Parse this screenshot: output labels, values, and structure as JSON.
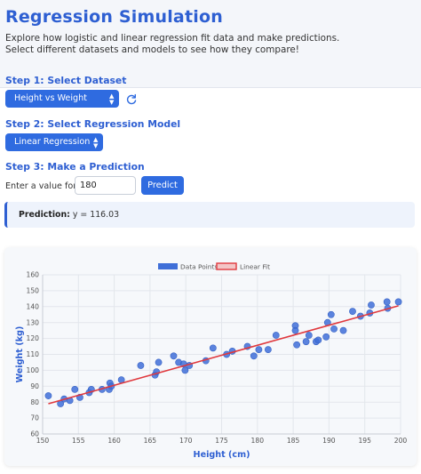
{
  "header": {
    "title": "Regression Simulation",
    "intro_line1": "Explore how logistic and linear regression fit data and make predictions.",
    "intro_line2": "Select different datasets and models to see how they compare!"
  },
  "step1": {
    "title": "Step 1: Select Dataset",
    "selected": "Height vs Weight",
    "refresh_icon": "refresh-icon"
  },
  "step2": {
    "title": "Step 2: Select Regression Model",
    "selected": "Linear Regression"
  },
  "step3": {
    "title": "Step 3: Make a Prediction",
    "input_label": "Enter a value for x:",
    "input_value": "180",
    "button_label": "Predict"
  },
  "result": {
    "label": "Prediction:",
    "text": "y = 116.03"
  },
  "colors": {
    "accent": "#2f6be0",
    "points": "#3f6fd8",
    "fit_line": "#e0393e"
  },
  "chart_data": {
    "type": "scatter",
    "xlabel": "Height (cm)",
    "ylabel": "Weight (kg)",
    "xlim": [
      150,
      200
    ],
    "ylim": [
      60,
      160
    ],
    "xticks": [
      150,
      155,
      160,
      165,
      170,
      175,
      180,
      185,
      190,
      195,
      200
    ],
    "yticks": [
      60,
      70,
      80,
      90,
      100,
      110,
      120,
      130,
      140,
      150,
      160
    ],
    "grid": true,
    "legend": {
      "position": "top",
      "entries": [
        "Data Points",
        "Linear Fit"
      ]
    },
    "series": [
      {
        "name": "Data Points",
        "kind": "scatter",
        "points": [
          [
            150.8,
            84
          ],
          [
            152.5,
            79
          ],
          [
            153,
            82
          ],
          [
            153.8,
            81
          ],
          [
            154.5,
            88
          ],
          [
            155.2,
            83
          ],
          [
            156.5,
            86
          ],
          [
            156.8,
            88
          ],
          [
            158.3,
            88
          ],
          [
            159.3,
            88
          ],
          [
            159.4,
            92
          ],
          [
            159.6,
            90
          ],
          [
            161,
            94
          ],
          [
            163.7,
            103
          ],
          [
            165.7,
            97
          ],
          [
            165.9,
            99
          ],
          [
            166.2,
            105
          ],
          [
            168.3,
            109
          ],
          [
            169,
            105
          ],
          [
            169.7,
            104
          ],
          [
            169.9,
            100
          ],
          [
            170.5,
            103
          ],
          [
            172.8,
            106
          ],
          [
            173.8,
            114
          ],
          [
            175.7,
            110
          ],
          [
            176.5,
            112
          ],
          [
            178.6,
            115
          ],
          [
            179.5,
            109
          ],
          [
            180.2,
            113
          ],
          [
            181.5,
            113
          ],
          [
            182.6,
            122
          ],
          [
            185.3,
            128
          ],
          [
            185.3,
            125
          ],
          [
            185.5,
            116
          ],
          [
            186.8,
            118
          ],
          [
            187.2,
            122
          ],
          [
            188.2,
            118
          ],
          [
            188.5,
            119
          ],
          [
            189.6,
            121
          ],
          [
            189.8,
            130
          ],
          [
            190.3,
            135
          ],
          [
            190.7,
            126
          ],
          [
            192,
            125
          ],
          [
            193.3,
            137
          ],
          [
            194.4,
            134
          ],
          [
            195.7,
            136
          ],
          [
            195.9,
            141
          ],
          [
            198.1,
            143
          ],
          [
            198.2,
            139
          ],
          [
            199.7,
            143
          ]
        ]
      },
      {
        "name": "Linear Fit",
        "kind": "line",
        "points": [
          [
            150.8,
            79.0
          ],
          [
            199.7,
            140.5
          ]
        ]
      }
    ]
  }
}
